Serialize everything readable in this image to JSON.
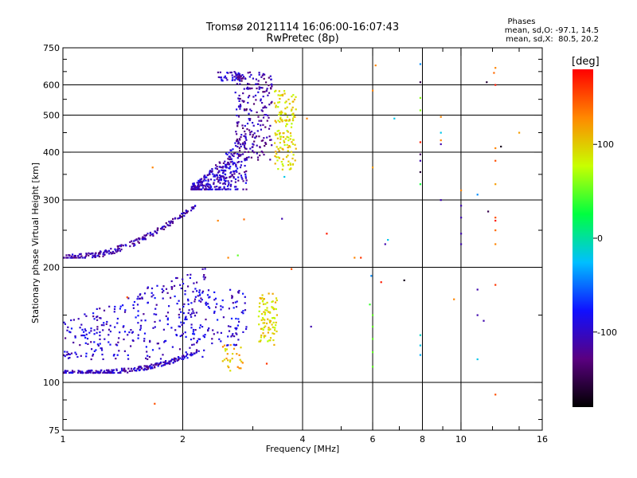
{
  "header": {
    "title": "Tromsø 20121114 16:06:00-16:07:43",
    "subtitle": "RwPretec (8p)",
    "phases_label": "Phases",
    "stats_o": "mean, sd,O: -97.1, 14.5",
    "stats_x": "mean, sd,X:  80.5, 20.2"
  },
  "colorbar": {
    "unit": "[deg]",
    "min": -180,
    "max": 180,
    "ticks": [
      {
        "value": 100,
        "label": "100"
      },
      {
        "value": 0,
        "label": "0"
      },
      {
        "value": -100,
        "label": "-100"
      }
    ],
    "colors": [
      "#000000",
      "#5a0080",
      "#1010ff",
      "#00bfff",
      "#00ff40",
      "#c8ff00",
      "#ff8800",
      "#ff0000"
    ]
  },
  "chart_data": {
    "type": "scatter",
    "title": "Tromsø 20121114 16:06:00-16:07:43",
    "subtitle": "RwPretec (8p)",
    "xlabel": "Frequency [MHz]",
    "ylabel": "Stationary phase Virtual Height [km]",
    "x_scale": "log",
    "y_scale": "log",
    "xlim": [
      1,
      16
    ],
    "ylim": [
      75,
      750
    ],
    "grid": true,
    "x_ticks": [
      {
        "value": 1,
        "label": "1"
      },
      {
        "value": 2,
        "label": "2"
      },
      {
        "value": 4,
        "label": "4"
      },
      {
        "value": 6,
        "label": "6"
      },
      {
        "value": 8,
        "label": "8"
      },
      {
        "value": 10,
        "label": "10"
      },
      {
        "value": 16,
        "label": "16"
      }
    ],
    "x_minor_ticks": [
      3,
      5,
      7,
      9,
      12,
      14
    ],
    "y_ticks": [
      {
        "value": 750,
        "label": "750"
      },
      {
        "value": 600,
        "label": "600"
      },
      {
        "value": 500,
        "label": "500"
      },
      {
        "value": 400,
        "label": "400"
      },
      {
        "value": 300,
        "label": "300"
      },
      {
        "value": 200,
        "label": "200"
      },
      {
        "value": 100,
        "label": "100"
      },
      {
        "value": 75,
        "label": "75"
      }
    ],
    "y_minor_ticks": [
      80,
      90,
      150,
      250,
      350,
      450,
      550,
      650,
      700
    ],
    "point_groups": [
      {
        "trace": "E-layer O-mode lower trace",
        "x_range": [
          1.0,
          2.2
        ],
        "y_range": [
          106,
          125
        ],
        "phase_deg": -105,
        "count": 230
      },
      {
        "trace": "E-layer O-mode upper spread",
        "x_range": [
          1.0,
          2.3
        ],
        "y_range": [
          115,
          200
        ],
        "phase_deg": -98,
        "count": 290
      },
      {
        "trace": "E-layer O-mode spread",
        "x_range": [
          2.0,
          2.9
        ],
        "y_range": [
          125,
          175
        ],
        "phase_deg": -95,
        "count": 120
      },
      {
        "trace": "E-layer X-mode",
        "x_range": [
          2.5,
          2.85
        ],
        "y_range": [
          107,
          126
        ],
        "phase_deg": 110,
        "count": 28
      },
      {
        "trace": "E-layer X-mode cluster",
        "x_range": [
          3.1,
          3.45
        ],
        "y_range": [
          125,
          172
        ],
        "phase_deg": 95,
        "count": 90
      },
      {
        "trace": "F-layer O-mode lower trace",
        "x_range": [
          1.0,
          2.15
        ],
        "y_range": [
          212,
          290
        ],
        "phase_deg": -110,
        "count": 200
      },
      {
        "trace": "F-layer O-mode cusp",
        "x_range": [
          2.1,
          2.9
        ],
        "y_range": [
          320,
          450
        ],
        "phase_deg": -102,
        "count": 330
      },
      {
        "trace": "F-layer O-mode upper",
        "x_range": [
          2.7,
          3.35
        ],
        "y_range": [
          380,
          650
        ],
        "phase_deg": -115,
        "count": 220
      },
      {
        "trace": "F-layer O-mode top",
        "x_range": [
          2.45,
          2.85
        ],
        "y_range": [
          615,
          650
        ],
        "phase_deg": -100,
        "count": 40
      },
      {
        "trace": "F-layer X-mode",
        "x_range": [
          3.4,
          3.85
        ],
        "y_range": [
          360,
          580
        ],
        "phase_deg": 95,
        "count": 150
      }
    ],
    "scattered_points": [
      [
        1.7,
        88,
        150
      ],
      [
        1.68,
        365,
        130
      ],
      [
        1.45,
        167,
        150
      ],
      [
        2.85,
        267,
        140
      ],
      [
        3.75,
        198,
        150
      ],
      [
        4.6,
        245,
        170
      ],
      [
        5.4,
        212,
        130
      ],
      [
        5.6,
        212,
        160
      ],
      [
        5.95,
        190,
        -40
      ],
      [
        6.3,
        183,
        170
      ],
      [
        6.55,
        236,
        -20
      ],
      [
        6.45,
        230,
        -110
      ],
      [
        6.8,
        490,
        -20
      ],
      [
        7.2,
        185,
        -170
      ],
      [
        6.1,
        675,
        130
      ],
      [
        6.0,
        580,
        130
      ],
      [
        6.0,
        365,
        120
      ],
      [
        7.9,
        680,
        -40
      ],
      [
        7.9,
        610,
        -150
      ],
      [
        7.9,
        555,
        60
      ],
      [
        7.9,
        515,
        60
      ],
      [
        7.9,
        425,
        170
      ],
      [
        7.9,
        395,
        -140
      ],
      [
        7.9,
        380,
        -110
      ],
      [
        7.9,
        355,
        -160
      ],
      [
        7.9,
        330,
        30
      ],
      [
        8.9,
        450,
        -20
      ],
      [
        8.9,
        495,
        130
      ],
      [
        8.9,
        430,
        130
      ],
      [
        8.9,
        420,
        -110
      ],
      [
        9.6,
        165,
        130
      ],
      [
        10.0,
        290,
        -110
      ],
      [
        10.0,
        270,
        -110
      ],
      [
        10.0,
        245,
        -110
      ],
      [
        10.0,
        230,
        -110
      ],
      [
        10.0,
        318,
        130
      ],
      [
        11.0,
        175,
        -110
      ],
      [
        11.0,
        150,
        -110
      ],
      [
        11.0,
        115,
        -20
      ],
      [
        11.0,
        310,
        -40
      ],
      [
        11.6,
        610,
        -160
      ],
      [
        12.2,
        665,
        130
      ],
      [
        12.1,
        645,
        140
      ],
      [
        12.2,
        600,
        170
      ],
      [
        12.2,
        410,
        130
      ],
      [
        12.2,
        380,
        150
      ],
      [
        12.2,
        330,
        120
      ],
      [
        12.2,
        270,
        150
      ],
      [
        12.2,
        265,
        170
      ],
      [
        12.2,
        250,
        140
      ],
      [
        12.2,
        230,
        130
      ],
      [
        12.2,
        180,
        160
      ],
      [
        12.2,
        93,
        150
      ],
      [
        12.6,
        414,
        -170
      ],
      [
        14.0,
        450,
        120
      ],
      [
        11.7,
        280,
        -150
      ],
      [
        11.4,
        145,
        -110
      ],
      [
        8.9,
        300,
        -110
      ],
      [
        6.0,
        130,
        50
      ],
      [
        6.0,
        140,
        50
      ],
      [
        6.0,
        150,
        50
      ],
      [
        6.0,
        120,
        50
      ],
      [
        6.0,
        110,
        50
      ],
      [
        5.9,
        160,
        40
      ],
      [
        7.9,
        125,
        -20
      ],
      [
        7.9,
        133,
        -10
      ],
      [
        7.9,
        118,
        -30
      ],
      [
        4.1,
        490,
        130
      ],
      [
        4.2,
        140,
        -110
      ],
      [
        3.55,
        268,
        -110
      ],
      [
        3.25,
        112,
        160
      ],
      [
        2.45,
        265,
        130
      ],
      [
        2.6,
        212,
        130
      ],
      [
        2.75,
        215,
        50
      ],
      [
        3.6,
        345,
        -20
      ]
    ]
  }
}
